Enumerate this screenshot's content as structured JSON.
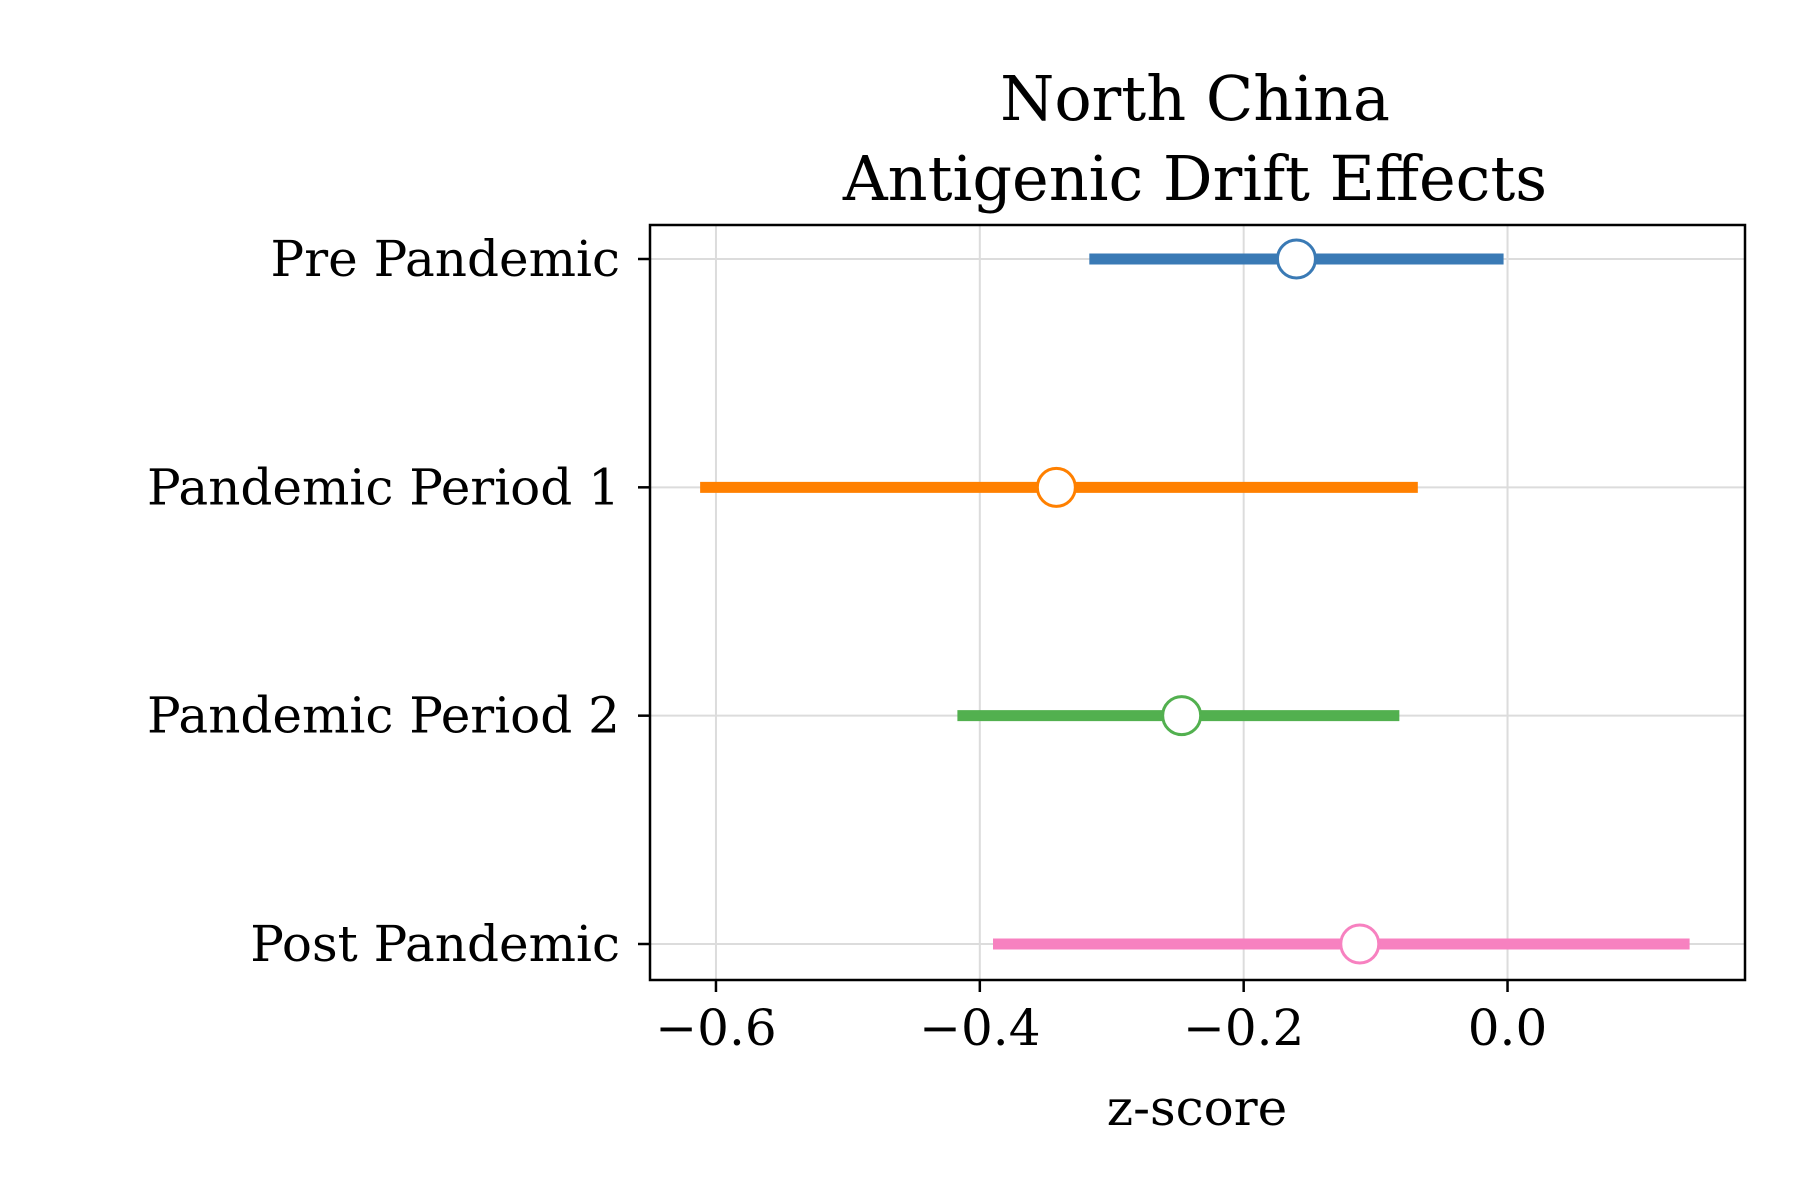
{
  "chart_data": {
    "type": "forest",
    "title_line1": "North China",
    "title_line2": "Antigenic Drift Effects",
    "xlabel": "z-score",
    "ylabel": "",
    "xlim": [
      -0.65,
      0.18
    ],
    "xticks": [
      -0.6,
      -0.4,
      -0.2,
      0.0
    ],
    "xtick_labels": [
      "−0.6",
      "−0.4",
      "−0.2",
      "0.0"
    ],
    "grid": true,
    "legend": "none",
    "series": [
      {
        "name": "Pre Pandemic",
        "estimate": -0.16,
        "lower": -0.317,
        "upper": -0.003,
        "color": "#3a7ab5"
      },
      {
        "name": "Pandemic Period 1",
        "estimate": -0.342,
        "lower": -0.612,
        "upper": -0.068,
        "color": "#ff8000"
      },
      {
        "name": "Pandemic Period 2",
        "estimate": -0.247,
        "lower": -0.417,
        "upper": -0.082,
        "color": "#52b04f"
      },
      {
        "name": "Post Pandemic",
        "estimate": -0.112,
        "lower": -0.39,
        "upper": 0.138,
        "color": "#f781c0"
      }
    ]
  }
}
